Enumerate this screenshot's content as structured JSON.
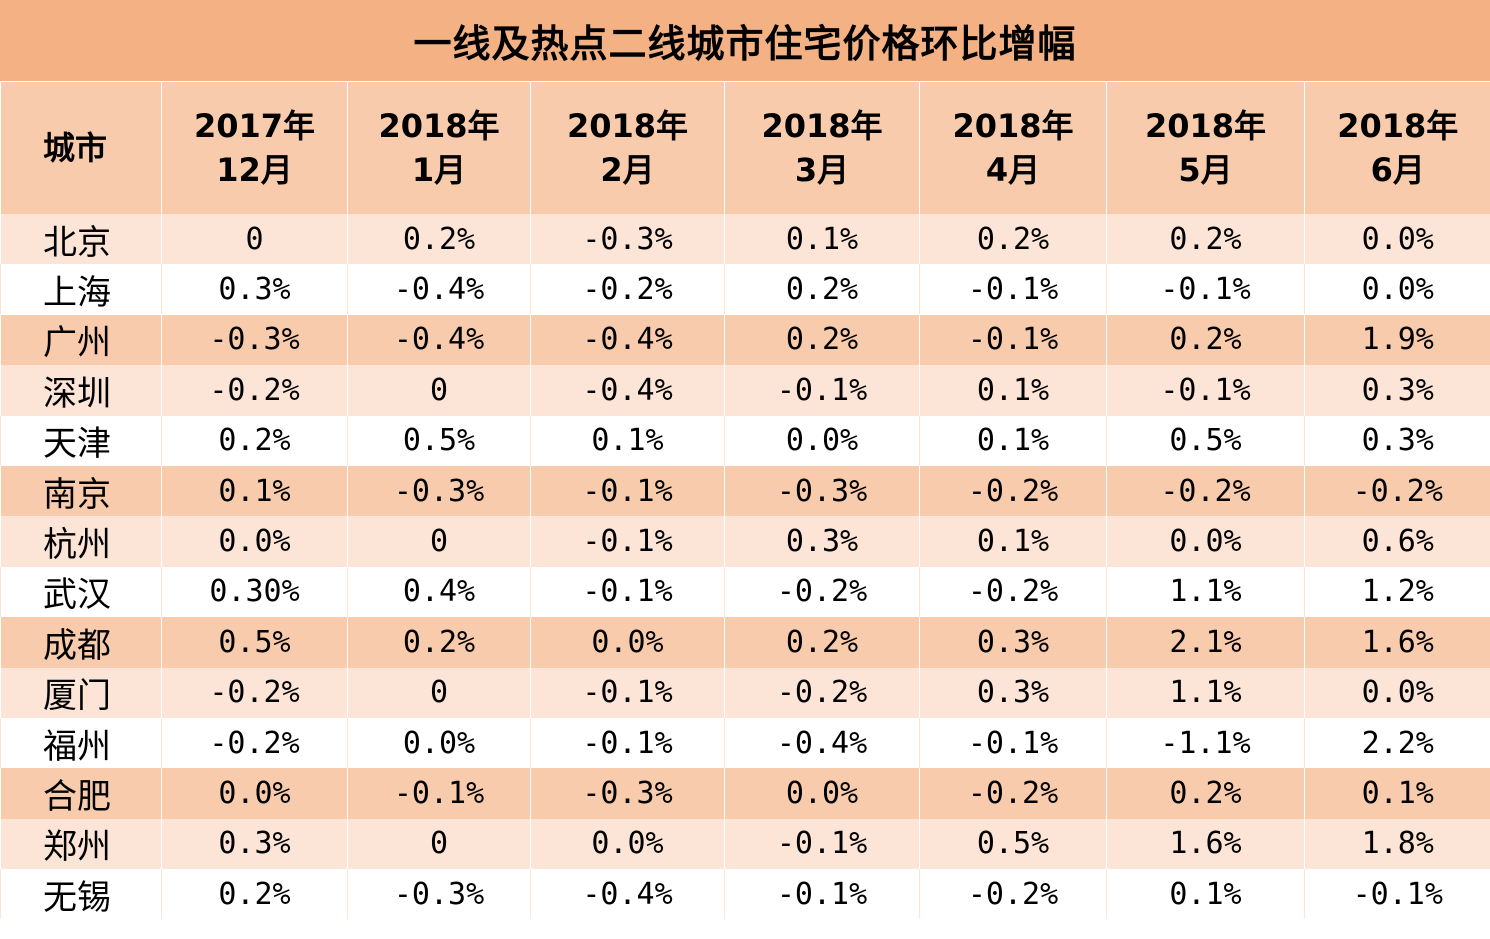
{
  "title": "一线及热点二线城市住宅价格环比增幅",
  "header": {
    "city_label": "城市",
    "columns": [
      {
        "year": "2017年",
        "month": "12月"
      },
      {
        "year": "2018年",
        "month": "1月"
      },
      {
        "year": "2018年",
        "month": "2月"
      },
      {
        "year": "2018年",
        "month": "3月"
      },
      {
        "year": "2018年",
        "month": "4月"
      },
      {
        "year": "2018年",
        "month": "5月"
      },
      {
        "year": "2018年",
        "month": "6月"
      }
    ]
  },
  "colors": {
    "title_bg": "#F4B183",
    "header_bg": "#F8CBAD",
    "row_dark": "#F8CBAD",
    "row_light": "#FCE4D6",
    "row_white": "#FFFFFF"
  },
  "rows": [
    {
      "city": "北京",
      "shade": "light",
      "values": [
        "0",
        "0.2%",
        "-0.3%",
        "0.1%",
        "0.2%",
        "0.2%",
        "0.0%"
      ]
    },
    {
      "city": "上海",
      "shade": "white",
      "values": [
        "0.3%",
        "-0.4%",
        "-0.2%",
        "0.2%",
        "-0.1%",
        "-0.1%",
        "0.0%"
      ]
    },
    {
      "city": "广州",
      "shade": "dark",
      "values": [
        "-0.3%",
        "-0.4%",
        "-0.4%",
        "0.2%",
        "-0.1%",
        "0.2%",
        "1.9%"
      ]
    },
    {
      "city": "深圳",
      "shade": "light",
      "values": [
        "-0.2%",
        "0",
        "-0.4%",
        "-0.1%",
        "0.1%",
        "-0.1%",
        "0.3%"
      ]
    },
    {
      "city": "天津",
      "shade": "white",
      "values": [
        "0.2%",
        "0.5%",
        "0.1%",
        "0.0%",
        "0.1%",
        "0.5%",
        "0.3%"
      ]
    },
    {
      "city": "南京",
      "shade": "dark",
      "values": [
        "0.1%",
        "-0.3%",
        "-0.1%",
        "-0.3%",
        "-0.2%",
        "-0.2%",
        "-0.2%"
      ]
    },
    {
      "city": "杭州",
      "shade": "light",
      "values": [
        "0.0%",
        "0",
        "-0.1%",
        "0.3%",
        "0.1%",
        "0.0%",
        "0.6%"
      ]
    },
    {
      "city": "武汉",
      "shade": "white",
      "values": [
        "0.30%",
        "0.4%",
        "-0.1%",
        "-0.2%",
        "-0.2%",
        "1.1%",
        "1.2%"
      ]
    },
    {
      "city": "成都",
      "shade": "dark",
      "values": [
        "0.5%",
        "0.2%",
        "0.0%",
        "0.2%",
        "0.3%",
        "2.1%",
        "1.6%"
      ]
    },
    {
      "city": "厦门",
      "shade": "light",
      "values": [
        "-0.2%",
        "0",
        "-0.1%",
        "-0.2%",
        "0.3%",
        "1.1%",
        "0.0%"
      ]
    },
    {
      "city": "福州",
      "shade": "white",
      "values": [
        "-0.2%",
        "0.0%",
        "-0.1%",
        "-0.4%",
        "-0.1%",
        "-1.1%",
        "2.2%"
      ]
    },
    {
      "city": "合肥",
      "shade": "dark",
      "values": [
        "0.0%",
        "-0.1%",
        "-0.3%",
        "0.0%",
        "-0.2%",
        "0.2%",
        "0.1%"
      ]
    },
    {
      "city": "郑州",
      "shade": "light",
      "values": [
        "0.3%",
        "0",
        "0.0%",
        "-0.1%",
        "0.5%",
        "1.6%",
        "1.8%"
      ]
    },
    {
      "city": "无锡",
      "shade": "white",
      "values": [
        "0.2%",
        "-0.3%",
        "-0.4%",
        "-0.1%",
        "-0.2%",
        "0.1%",
        "-0.1%"
      ]
    }
  ]
}
